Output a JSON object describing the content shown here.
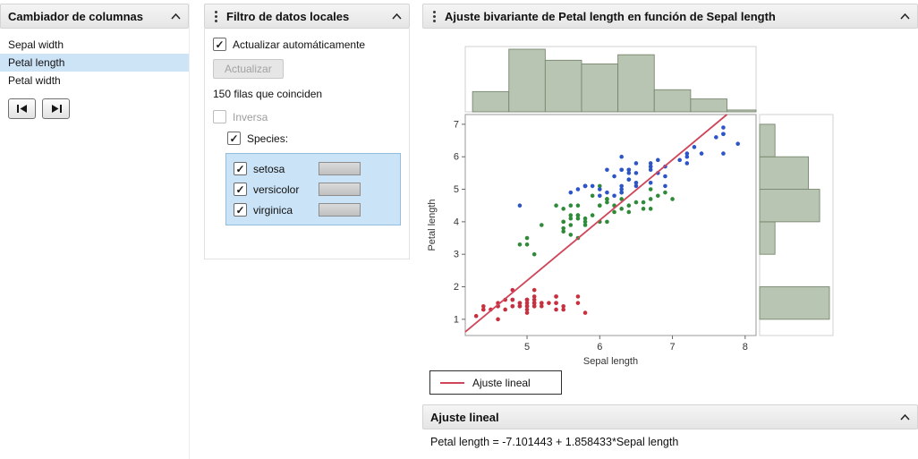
{
  "column_switcher": {
    "title": "Cambiador de columnas",
    "items": [
      {
        "label": "Sepal width",
        "selected": false
      },
      {
        "label": "Petal length",
        "selected": true
      },
      {
        "label": "Petal width",
        "selected": false
      }
    ]
  },
  "data_filter": {
    "title": "Filtro de datos locales",
    "auto_update_label": "Actualizar automáticamente",
    "auto_update_checked": true,
    "update_button_label": "Actualizar",
    "rows_matching_text": "150 filas que coinciden",
    "inverse_label": "Inversa",
    "inverse_checked": false,
    "species_label": "Species:",
    "species_checked": true,
    "species_items": [
      {
        "label": "setosa",
        "checked": true
      },
      {
        "label": "versicolor",
        "checked": true
      },
      {
        "label": "virginica",
        "checked": true
      }
    ]
  },
  "bivariate": {
    "title": "Ajuste bivariante de Petal length en función de Sepal length",
    "legend_label": "Ajuste lineal",
    "fit_section_title": "Ajuste lineal",
    "equation": "Petal length = -7.101443 + 1.858433*Sepal length"
  },
  "icons": {
    "menu": "vertical-dots",
    "collapse": "chevron-up",
    "first_column": "step-backward",
    "last_column": "step-forward"
  },
  "colors": {
    "selection_highlight": "#cde4f7",
    "histogram_fill": "#b8c5b2"
  },
  "chart_data": {
    "type": "scatter",
    "title": "Ajuste bivariante de Petal length en función de Sepal length",
    "xlabel": "Sepal length",
    "ylabel": "Petal length",
    "xlim": [
      4.15,
      8.15
    ],
    "ylim": [
      0.5,
      7.3
    ],
    "x_ticks": [
      5,
      6,
      7,
      8
    ],
    "y_ticks": [
      1,
      2,
      3,
      4,
      5,
      6,
      7
    ],
    "grid": false,
    "series": [
      {
        "name": "setosa",
        "color": "#c8303f",
        "points": [
          [
            5.1,
            1.4
          ],
          [
            4.9,
            1.4
          ],
          [
            4.7,
            1.3
          ],
          [
            4.6,
            1.5
          ],
          [
            5.0,
            1.4
          ],
          [
            5.4,
            1.7
          ],
          [
            4.6,
            1.4
          ],
          [
            5.0,
            1.5
          ],
          [
            4.4,
            1.4
          ],
          [
            4.9,
            1.5
          ],
          [
            5.4,
            1.5
          ],
          [
            4.8,
            1.6
          ],
          [
            4.8,
            1.4
          ],
          [
            4.3,
            1.1
          ],
          [
            5.8,
            1.2
          ],
          [
            5.7,
            1.5
          ],
          [
            5.4,
            1.3
          ],
          [
            5.1,
            1.4
          ],
          [
            5.7,
            1.7
          ],
          [
            5.1,
            1.5
          ],
          [
            5.4,
            1.7
          ],
          [
            5.1,
            1.5
          ],
          [
            4.6,
            1.0
          ],
          [
            5.1,
            1.7
          ],
          [
            4.8,
            1.9
          ],
          [
            5.0,
            1.6
          ],
          [
            5.0,
            1.6
          ],
          [
            5.2,
            1.5
          ],
          [
            5.2,
            1.4
          ],
          [
            4.7,
            1.6
          ],
          [
            4.8,
            1.6
          ],
          [
            5.4,
            1.5
          ],
          [
            5.2,
            1.5
          ],
          [
            5.5,
            1.4
          ],
          [
            4.9,
            1.5
          ],
          [
            5.0,
            1.2
          ],
          [
            5.5,
            1.3
          ],
          [
            4.9,
            1.4
          ],
          [
            4.4,
            1.3
          ],
          [
            5.1,
            1.5
          ],
          [
            5.0,
            1.3
          ],
          [
            4.5,
            1.3
          ],
          [
            4.4,
            1.3
          ],
          [
            5.0,
            1.6
          ],
          [
            5.1,
            1.9
          ],
          [
            4.8,
            1.4
          ],
          [
            5.1,
            1.6
          ],
          [
            4.6,
            1.4
          ],
          [
            5.3,
            1.5
          ],
          [
            5.0,
            1.4
          ]
        ]
      },
      {
        "name": "versicolor",
        "color": "#2f8b3a",
        "points": [
          [
            7.0,
            4.7
          ],
          [
            6.4,
            4.5
          ],
          [
            6.9,
            4.9
          ],
          [
            5.5,
            4.0
          ],
          [
            6.5,
            4.6
          ],
          [
            5.7,
            4.5
          ],
          [
            6.3,
            4.7
          ],
          [
            4.9,
            3.3
          ],
          [
            6.6,
            4.6
          ],
          [
            5.2,
            3.9
          ],
          [
            5.0,
            3.5
          ],
          [
            5.9,
            4.2
          ],
          [
            6.0,
            4.0
          ],
          [
            6.1,
            4.7
          ],
          [
            5.6,
            3.6
          ],
          [
            6.7,
            4.4
          ],
          [
            5.6,
            4.5
          ],
          [
            5.8,
            4.1
          ],
          [
            6.2,
            4.5
          ],
          [
            5.6,
            3.9
          ],
          [
            5.9,
            4.8
          ],
          [
            6.1,
            4.0
          ],
          [
            6.3,
            4.9
          ],
          [
            6.1,
            4.7
          ],
          [
            6.4,
            4.3
          ],
          [
            6.6,
            4.4
          ],
          [
            6.8,
            4.8
          ],
          [
            6.7,
            5.0
          ],
          [
            6.0,
            4.5
          ],
          [
            5.7,
            3.5
          ],
          [
            5.5,
            3.8
          ],
          [
            5.5,
            3.7
          ],
          [
            5.8,
            3.9
          ],
          [
            6.0,
            5.1
          ],
          [
            5.4,
            4.5
          ],
          [
            6.0,
            4.5
          ],
          [
            6.7,
            4.7
          ],
          [
            6.3,
            4.4
          ],
          [
            5.6,
            4.1
          ],
          [
            5.5,
            4.0
          ],
          [
            5.5,
            4.4
          ],
          [
            6.1,
            4.6
          ],
          [
            5.8,
            4.0
          ],
          [
            5.0,
            3.3
          ],
          [
            5.6,
            4.2
          ],
          [
            5.7,
            4.2
          ],
          [
            5.7,
            4.2
          ],
          [
            6.2,
            4.3
          ],
          [
            5.1,
            3.0
          ],
          [
            5.7,
            4.1
          ]
        ]
      },
      {
        "name": "virginica",
        "color": "#2d55c8",
        "points": [
          [
            6.3,
            6.0
          ],
          [
            5.8,
            5.1
          ],
          [
            7.1,
            5.9
          ],
          [
            6.3,
            5.6
          ],
          [
            6.5,
            5.8
          ],
          [
            7.6,
            6.6
          ],
          [
            4.9,
            4.5
          ],
          [
            7.3,
            6.3
          ],
          [
            6.7,
            5.8
          ],
          [
            7.2,
            6.1
          ],
          [
            6.5,
            5.1
          ],
          [
            6.4,
            5.3
          ],
          [
            6.8,
            5.5
          ],
          [
            5.7,
            5.0
          ],
          [
            5.8,
            5.1
          ],
          [
            6.4,
            5.3
          ],
          [
            6.5,
            5.5
          ],
          [
            7.7,
            6.7
          ],
          [
            7.7,
            6.9
          ],
          [
            6.0,
            5.0
          ],
          [
            6.9,
            5.7
          ],
          [
            5.6,
            4.9
          ],
          [
            7.7,
            6.7
          ],
          [
            6.3,
            4.9
          ],
          [
            6.7,
            5.7
          ],
          [
            7.2,
            6.0
          ],
          [
            6.2,
            4.8
          ],
          [
            6.1,
            4.9
          ],
          [
            6.4,
            5.6
          ],
          [
            7.2,
            5.8
          ],
          [
            7.4,
            6.1
          ],
          [
            7.9,
            6.4
          ],
          [
            6.4,
            5.6
          ],
          [
            6.3,
            5.1
          ],
          [
            6.1,
            5.6
          ],
          [
            7.7,
            6.1
          ],
          [
            6.3,
            5.6
          ],
          [
            6.4,
            5.5
          ],
          [
            6.0,
            4.8
          ],
          [
            6.9,
            5.4
          ],
          [
            6.7,
            5.6
          ],
          [
            6.9,
            5.1
          ],
          [
            5.8,
            5.1
          ],
          [
            6.8,
            5.9
          ],
          [
            6.7,
            5.7
          ],
          [
            6.7,
            5.2
          ],
          [
            6.3,
            5.0
          ],
          [
            6.5,
            5.2
          ],
          [
            6.2,
            5.4
          ],
          [
            5.9,
            5.1
          ]
        ]
      }
    ],
    "fit_line": {
      "label": "Ajuste lineal",
      "intercept": -7.101443,
      "slope": 1.858433,
      "color": "#d0455a"
    },
    "x_histogram": {
      "bin_start": 4.25,
      "bin_width": 0.5,
      "counts": [
        11,
        34,
        28,
        26,
        31,
        12,
        7,
        1
      ],
      "color": "#b8c5b2"
    },
    "y_histogram": {
      "bin_start": 1.0,
      "bin_width": 1.0,
      "counts": [
        50,
        0,
        11,
        43,
        35,
        11
      ],
      "color": "#b8c5b2"
    }
  }
}
